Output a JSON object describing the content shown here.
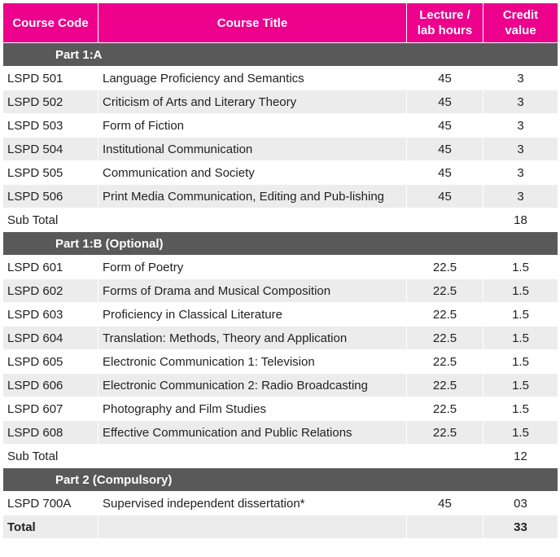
{
  "headers": {
    "code": "Course Code",
    "title": "Course Title",
    "hours": "Lecture / lab hours",
    "credit": "Credit value"
  },
  "rows": [
    {
      "type": "section",
      "label": "Part 1:A"
    },
    {
      "code": "LSPD 501",
      "title": "Language Proficiency and Semantics",
      "hours": "45",
      "credit": "3"
    },
    {
      "code": "LSPD 502",
      "title": "Criticism of Arts and Literary Theory",
      "hours": "45",
      "credit": "3"
    },
    {
      "code": "LSPD 503",
      "title": "Form of Fiction",
      "hours": "45",
      "credit": "3"
    },
    {
      "code": "LSPD 504",
      "title": "Institutional Communication",
      "hours": "45",
      "credit": "3"
    },
    {
      "code": "LSPD 505",
      "title": "Communication and Society",
      "hours": "45",
      "credit": "3"
    },
    {
      "code": "LSPD 506",
      "title": "Print Media Communication, Editing and Pub-lishing",
      "hours": "45",
      "credit": "3"
    },
    {
      "code": "Sub Total",
      "title": "",
      "hours": "",
      "credit": "18"
    },
    {
      "type": "section",
      "label": "Part 1:B (Optional)"
    },
    {
      "code": "LSPD 601",
      "title": "Form of Poetry",
      "hours": "22.5",
      "credit": "1.5"
    },
    {
      "code": "LSPD 602",
      "title": "Forms of Drama and Musical Composition",
      "hours": "22.5",
      "credit": "1.5"
    },
    {
      "code": "LSPD 603",
      "title": "Proficiency in Classical Literature",
      "hours": "22.5",
      "credit": "1.5"
    },
    {
      "code": "LSPD 604",
      "title": "Translation: Methods, Theory and Application",
      "hours": "22.5",
      "credit": "1.5"
    },
    {
      "code": "LSPD 605",
      "title": "Electronic Communication 1: Television",
      "hours": "22.5",
      "credit": "1.5"
    },
    {
      "code": "LSPD 606",
      "title": "Electronic Communication 2: Radio Broadcasting",
      "hours": "22.5",
      "credit": "1.5"
    },
    {
      "code": "LSPD 607",
      "title": "Photography and Film Studies",
      "hours": "22.5",
      "credit": "1.5"
    },
    {
      "code": "LSPD 608",
      "title": "Effective Communication and Public Relations",
      "hours": "22.5",
      "credit": "1.5"
    },
    {
      "code": "Sub Total",
      "title": "",
      "hours": "",
      "credit": "12"
    },
    {
      "type": "section",
      "label": "Part 2 (Compulsory)"
    },
    {
      "code": "LSPD 700A",
      "title": "Supervised independent dissertation*",
      "hours": "45",
      "credit": "03"
    },
    {
      "code": "Total",
      "title": "",
      "hours": "",
      "credit": "33",
      "bold": true
    }
  ],
  "colors": {
    "header": "#ec008c",
    "section": "#595959",
    "stripe": "#ececec"
  }
}
